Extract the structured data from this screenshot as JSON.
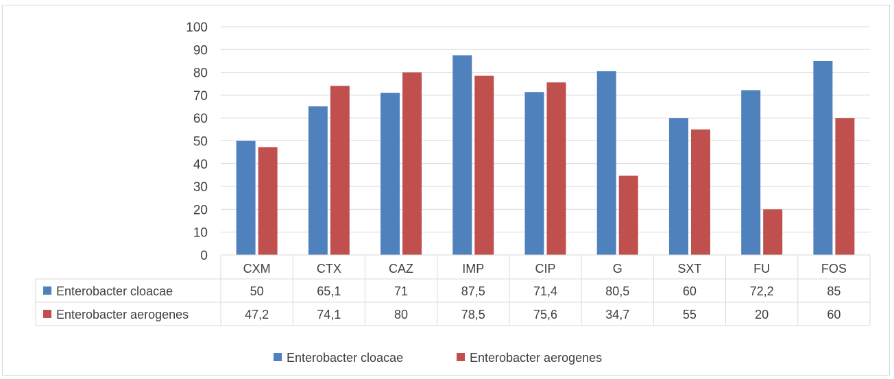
{
  "chart_data": {
    "type": "bar",
    "categories": [
      "CXM",
      "CTX",
      "CAZ",
      "IMP",
      "CIP",
      "G",
      "SXT",
      "FU",
      "FOS"
    ],
    "series": [
      {
        "name": "Enterobacter cloacae",
        "color": "#4f81bd",
        "values": [
          50,
          65.1,
          71,
          87.5,
          71.4,
          80.5,
          60,
          72.2,
          85
        ],
        "labels": [
          "50",
          "65,1",
          "71",
          "87,5",
          "71,4",
          "80,5",
          "60",
          "72,2",
          "85"
        ]
      },
      {
        "name": "Enterobacter aerogenes",
        "color": "#c0504d",
        "values": [
          47.2,
          74.1,
          80,
          78.5,
          75.6,
          34.7,
          55,
          20,
          60
        ],
        "labels": [
          "47,2",
          "74,1",
          "80",
          "78,5",
          "75,6",
          "34,7",
          "55",
          "20",
          "60"
        ]
      }
    ],
    "yticks": [
      "0",
      "10",
      "20",
      "30",
      "40",
      "50",
      "60",
      "70",
      "80",
      "90",
      "100"
    ],
    "ylim": [
      0,
      100
    ],
    "grid": true,
    "legend": "bottom",
    "data_table": true
  }
}
